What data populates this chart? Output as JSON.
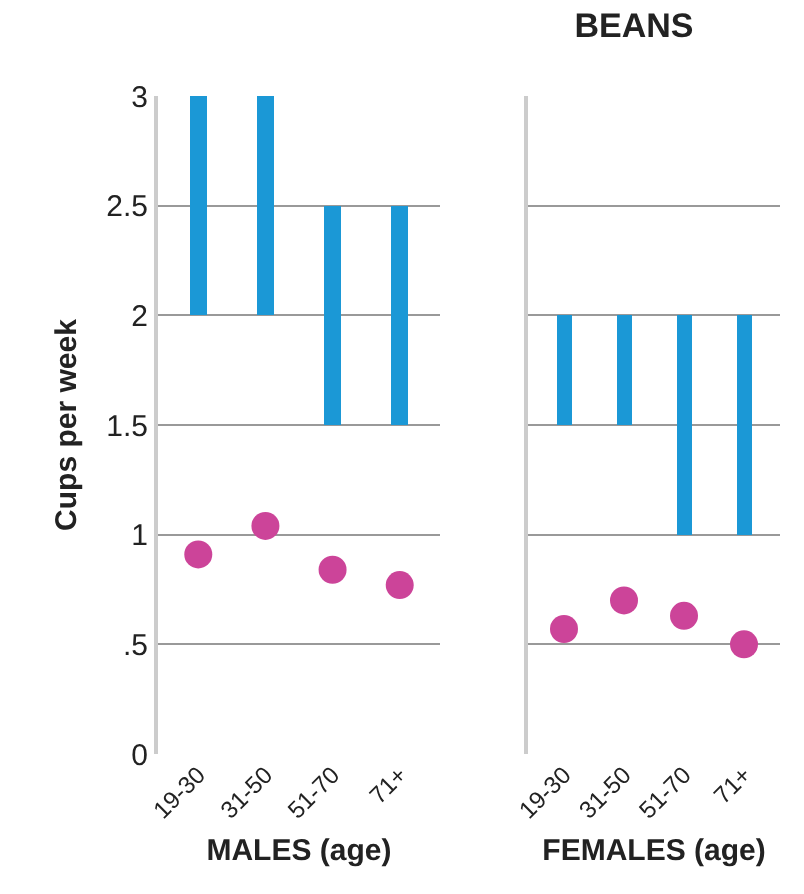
{
  "chart_data": [
    {
      "type": "bar",
      "ylabel": "Cups per week",
      "xlabel": "MALES (age)",
      "categories": [
        "19-30",
        "31-50",
        "51-70",
        "71+"
      ],
      "series": [
        {
          "type": "bar",
          "color": "#1b98d6",
          "base": [
            2,
            2,
            1.5,
            1.5
          ],
          "values": [
            1,
            1,
            1,
            1
          ]
        },
        {
          "type": "scatter",
          "color": "#cc4499",
          "marker": "circle",
          "values": [
            0.91,
            1.04,
            0.84,
            0.77
          ]
        }
      ],
      "ylim": [
        0,
        3
      ],
      "yticks": [
        0,
        {
          "value": 0.5,
          "label": ".5"
        },
        1,
        1.5,
        2,
        2.5,
        3
      ],
      "grid": "y"
    },
    {
      "type": "bar",
      "title": "BEANS",
      "xlabel": "FEMALES (age)",
      "categories": [
        "19-30",
        "31-50",
        "51-70",
        "71+"
      ],
      "series": [
        {
          "type": "bar",
          "color": "#1b98d6",
          "base": [
            1.5,
            1.5,
            1,
            1
          ],
          "values": [
            0.5,
            0.5,
            1,
            1
          ]
        },
        {
          "type": "scatter",
          "color": "#cc4499",
          "marker": "circle",
          "values": [
            0.57,
            0.7,
            0.63,
            0.5
          ]
        }
      ],
      "ylim": [
        0,
        3
      ],
      "yticks": [
        0,
        0.5,
        1,
        1.5,
        2,
        2.5,
        3
      ],
      "grid": "y",
      "tick_labels": "x"
    }
  ]
}
